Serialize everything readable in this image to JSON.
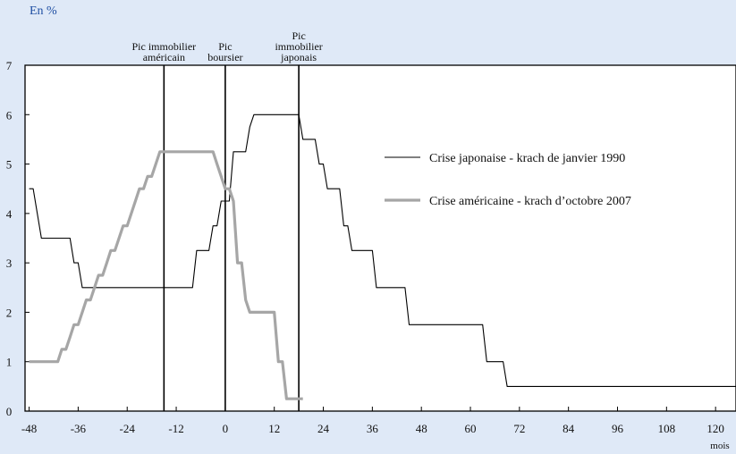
{
  "header": {
    "unit": "En %"
  },
  "colors": {
    "background": "#dfe9f7",
    "japan": "#000000",
    "us": "#a6a6a6",
    "header_text": "#1f4fa3"
  },
  "chart_data": {
    "type": "line",
    "xlabel": "mois",
    "ylabel": "",
    "xlim": [
      -49,
      125
    ],
    "ylim": [
      0,
      7
    ],
    "x_ticks": [
      -48,
      -36,
      -24,
      -12,
      0,
      12,
      24,
      36,
      48,
      60,
      72,
      84,
      96,
      108,
      120
    ],
    "y_ticks": [
      0,
      1,
      2,
      3,
      4,
      5,
      6,
      7
    ],
    "grid": false,
    "legend_position": "right",
    "series": [
      {
        "name": "Crise japonaise - krach de janvier 1990",
        "color": "#000000",
        "x": [
          -48,
          -47,
          -46,
          -45,
          -44,
          -40,
          -38,
          -37,
          -36,
          -35,
          -34,
          -20,
          -14,
          -8,
          -7,
          -6,
          -4,
          -3,
          -2,
          -1,
          0,
          1,
          2,
          3,
          4,
          5,
          6,
          7,
          8,
          9,
          10,
          11,
          12,
          15,
          16,
          17,
          18,
          19,
          20,
          21,
          22,
          23,
          24,
          25,
          26,
          27,
          28,
          29,
          30,
          31,
          32,
          33,
          34,
          35,
          36,
          37,
          38,
          39,
          40,
          41,
          42,
          43,
          44,
          45,
          46,
          50,
          60,
          62,
          63,
          64,
          65,
          66,
          67,
          68,
          69,
          70,
          80,
          90,
          100,
          110,
          120,
          125
        ],
        "y": [
          4.5,
          4.5,
          4.0,
          3.5,
          3.5,
          3.5,
          3.5,
          3.0,
          3.0,
          2.5,
          2.5,
          2.5,
          2.5,
          2.5,
          3.25,
          3.25,
          3.25,
          3.75,
          3.75,
          4.25,
          4.25,
          4.25,
          5.25,
          5.25,
          5.25,
          5.25,
          5.75,
          6.0,
          6.0,
          6.0,
          6.0,
          6.0,
          6.0,
          6.0,
          6.0,
          6.0,
          6.0,
          5.5,
          5.5,
          5.5,
          5.5,
          5.0,
          5.0,
          4.5,
          4.5,
          4.5,
          4.5,
          3.75,
          3.75,
          3.25,
          3.25,
          3.25,
          3.25,
          3.25,
          3.25,
          2.5,
          2.5,
          2.5,
          2.5,
          2.5,
          2.5,
          2.5,
          2.5,
          1.75,
          1.75,
          1.75,
          1.75,
          1.75,
          1.75,
          1.0,
          1.0,
          1.0,
          1.0,
          1.0,
          0.5,
          0.5,
          0.5,
          0.5,
          0.5,
          0.5,
          0.5,
          0.5
        ]
      },
      {
        "name": "Crise américaine - krach d’octobre 2007",
        "color": "#a6a6a6",
        "x": [
          -48,
          -46,
          -44,
          -42,
          -41,
          -40,
          -39,
          -38,
          -37,
          -36,
          -35,
          -34,
          -33,
          -32,
          -31,
          -30,
          -29,
          -28,
          -27,
          -26,
          -25,
          -24,
          -23,
          -22,
          -21,
          -20,
          -19,
          -18,
          -17,
          -16,
          -15,
          -14,
          -12,
          -10,
          -8,
          -6,
          -4,
          -3,
          -2,
          -1,
          0,
          1,
          2,
          3,
          4,
          5,
          6,
          7,
          8,
          9,
          10,
          11,
          12,
          13,
          14,
          15,
          16,
          17,
          18,
          19
        ],
        "y": [
          1.0,
          1.0,
          1.0,
          1.0,
          1.0,
          1.25,
          1.25,
          1.5,
          1.75,
          1.75,
          2.0,
          2.25,
          2.25,
          2.5,
          2.75,
          2.75,
          3.0,
          3.25,
          3.25,
          3.5,
          3.75,
          3.75,
          4.0,
          4.25,
          4.5,
          4.5,
          4.75,
          4.75,
          5.0,
          5.25,
          5.25,
          5.25,
          5.25,
          5.25,
          5.25,
          5.25,
          5.25,
          5.25,
          5.0,
          4.75,
          4.5,
          4.5,
          4.25,
          3.0,
          3.0,
          2.25,
          2.0,
          2.0,
          2.0,
          2.0,
          2.0,
          2.0,
          2.0,
          1.0,
          1.0,
          0.25,
          0.25,
          0.25,
          0.25,
          0.25
        ]
      }
    ],
    "annotations": [
      {
        "x": -15,
        "lines": [
          "Pic immobilier",
          "américain"
        ]
      },
      {
        "x": 0,
        "lines": [
          "Pic",
          "boursier"
        ]
      },
      {
        "x": 18,
        "lines": [
          "Pic",
          "immobilier",
          "japonais"
        ]
      }
    ]
  }
}
